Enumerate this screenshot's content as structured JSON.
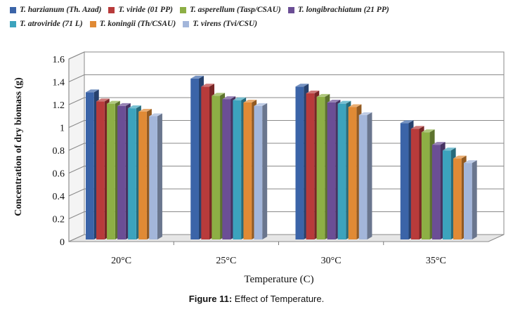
{
  "chart_data": {
    "type": "bar",
    "style": "3d-clustered-column",
    "categories": [
      "20°C",
      "25°C",
      "30°C",
      "35°C"
    ],
    "series": [
      {
        "name": "T. harzianum (Th. Azad)",
        "color": "#3B64A8",
        "values": [
          1.29,
          1.41,
          1.34,
          1.02
        ]
      },
      {
        "name": "T. viride (01 PP)",
        "color": "#B83B3B",
        "values": [
          1.21,
          1.34,
          1.28,
          0.97
        ]
      },
      {
        "name": "T. asperellum (Tasp/CSAU)",
        "color": "#8DAF45",
        "values": [
          1.19,
          1.26,
          1.25,
          0.94
        ]
      },
      {
        "name": "T. longibrachiatum (21 PP)",
        "color": "#6B4E95",
        "values": [
          1.17,
          1.23,
          1.2,
          0.83
        ]
      },
      {
        "name": "T. atroviride (71 L)",
        "color": "#3CA3BD",
        "values": [
          1.15,
          1.22,
          1.19,
          0.78
        ]
      },
      {
        "name": "T. koningii (Th/CSAU)",
        "color": "#E08A35",
        "values": [
          1.12,
          1.2,
          1.16,
          0.71
        ]
      },
      {
        "name": "T. virens (Tvi/CSU)",
        "color": "#A3B6DA",
        "values": [
          1.08,
          1.17,
          1.09,
          0.67
        ]
      }
    ],
    "xlabel": "Temperature (C)",
    "ylabel": "Concentration of dry biomass (g)",
    "ylim": [
      0,
      1.6
    ],
    "yticks": [
      "0",
      "0.2",
      "0.4",
      "0.6",
      "0.8",
      "1",
      "1.2",
      "1.4",
      "1.6"
    ],
    "grid": true,
    "legend_position": "top"
  },
  "caption": {
    "label": "Figure 11:",
    "text": " Effect of Temperature."
  }
}
